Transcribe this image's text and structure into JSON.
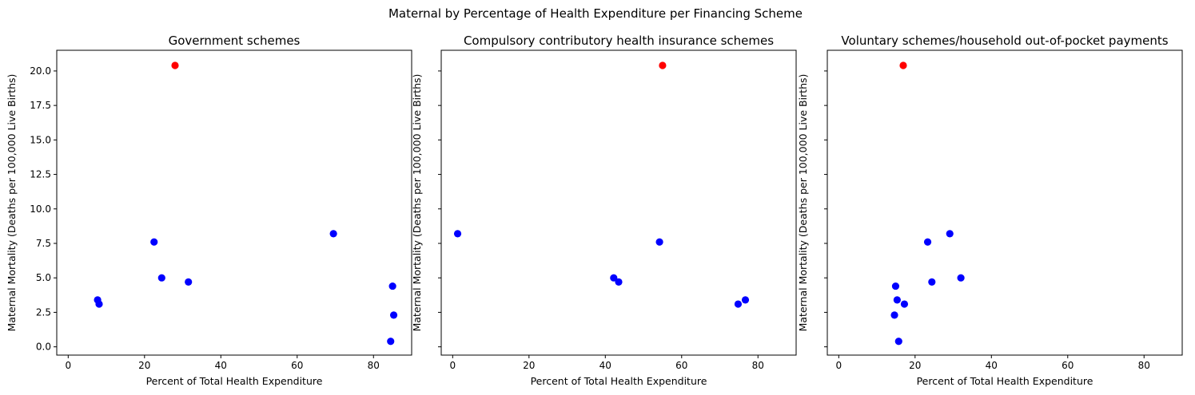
{
  "figure": {
    "suptitle": "Maternal by Percentage of Health Expenditure per Financing Scheme"
  },
  "colors": {
    "default_point": "#0000ff",
    "highlight_point": "#ff0000",
    "axis": "#000000"
  },
  "chart_data": [
    {
      "type": "scatter",
      "title": "Government schemes",
      "xlabel": "Percent of Total Health Expenditure",
      "ylabel": "Maternal Mortality (Deaths per 100,000 Live Births)",
      "xlim": [
        -3,
        90
      ],
      "ylim": [
        -0.6,
        21.5
      ],
      "xticks": [
        0,
        20,
        40,
        60,
        80
      ],
      "yticks": [
        0.0,
        2.5,
        5.0,
        7.5,
        10.0,
        12.5,
        15.0,
        17.5,
        20.0
      ],
      "ytick_labels_visible": true,
      "points": [
        {
          "x": 28.0,
          "y": 20.4,
          "highlight": true
        },
        {
          "x": 22.5,
          "y": 7.6,
          "highlight": false
        },
        {
          "x": 69.5,
          "y": 8.2,
          "highlight": false
        },
        {
          "x": 24.5,
          "y": 5.0,
          "highlight": false
        },
        {
          "x": 31.5,
          "y": 4.7,
          "highlight": false
        },
        {
          "x": 7.7,
          "y": 3.4,
          "highlight": false
        },
        {
          "x": 8.1,
          "y": 3.1,
          "highlight": false
        },
        {
          "x": 85.0,
          "y": 4.4,
          "highlight": false
        },
        {
          "x": 85.3,
          "y": 2.3,
          "highlight": false
        },
        {
          "x": 84.5,
          "y": 0.4,
          "highlight": false
        }
      ]
    },
    {
      "type": "scatter",
      "title": "Compulsory contributory health insurance schemes",
      "xlabel": "Percent of Total Health Expenditure",
      "ylabel": "Maternal Mortality (Deaths per 100,000 Live Births)",
      "xlim": [
        -3,
        90
      ],
      "ylim": [
        -0.6,
        21.5
      ],
      "xticks": [
        0,
        20,
        40,
        60,
        80
      ],
      "yticks": [
        0.0,
        2.5,
        5.0,
        7.5,
        10.0,
        12.5,
        15.0,
        17.5,
        20.0
      ],
      "ytick_labels_visible": false,
      "points": [
        {
          "x": 55.0,
          "y": 20.4,
          "highlight": true
        },
        {
          "x": 1.3,
          "y": 8.2,
          "highlight": false
        },
        {
          "x": 54.2,
          "y": 7.6,
          "highlight": false
        },
        {
          "x": 42.2,
          "y": 5.0,
          "highlight": false
        },
        {
          "x": 43.5,
          "y": 4.7,
          "highlight": false
        },
        {
          "x": 76.7,
          "y": 3.4,
          "highlight": false
        },
        {
          "x": 74.8,
          "y": 3.1,
          "highlight": false
        }
      ]
    },
    {
      "type": "scatter",
      "title": "Voluntary schemes/household out-of-pocket payments",
      "xlabel": "Percent of Total Health Expenditure",
      "ylabel": "Maternal Mortality (Deaths per 100,000 Live Births)",
      "xlim": [
        -3,
        90
      ],
      "ylim": [
        -0.6,
        21.5
      ],
      "xticks": [
        0,
        20,
        40,
        60,
        80
      ],
      "yticks": [
        0.0,
        2.5,
        5.0,
        7.5,
        10.0,
        12.5,
        15.0,
        17.5,
        20.0
      ],
      "ytick_labels_visible": false,
      "points": [
        {
          "x": 16.9,
          "y": 20.4,
          "highlight": true
        },
        {
          "x": 29.1,
          "y": 8.2,
          "highlight": false
        },
        {
          "x": 23.3,
          "y": 7.6,
          "highlight": false
        },
        {
          "x": 32.0,
          "y": 5.0,
          "highlight": false
        },
        {
          "x": 24.4,
          "y": 4.7,
          "highlight": false
        },
        {
          "x": 14.9,
          "y": 4.4,
          "highlight": false
        },
        {
          "x": 15.3,
          "y": 3.4,
          "highlight": false
        },
        {
          "x": 17.2,
          "y": 3.1,
          "highlight": false
        },
        {
          "x": 14.6,
          "y": 2.3,
          "highlight": false
        },
        {
          "x": 15.7,
          "y": 0.4,
          "highlight": false
        }
      ]
    }
  ]
}
